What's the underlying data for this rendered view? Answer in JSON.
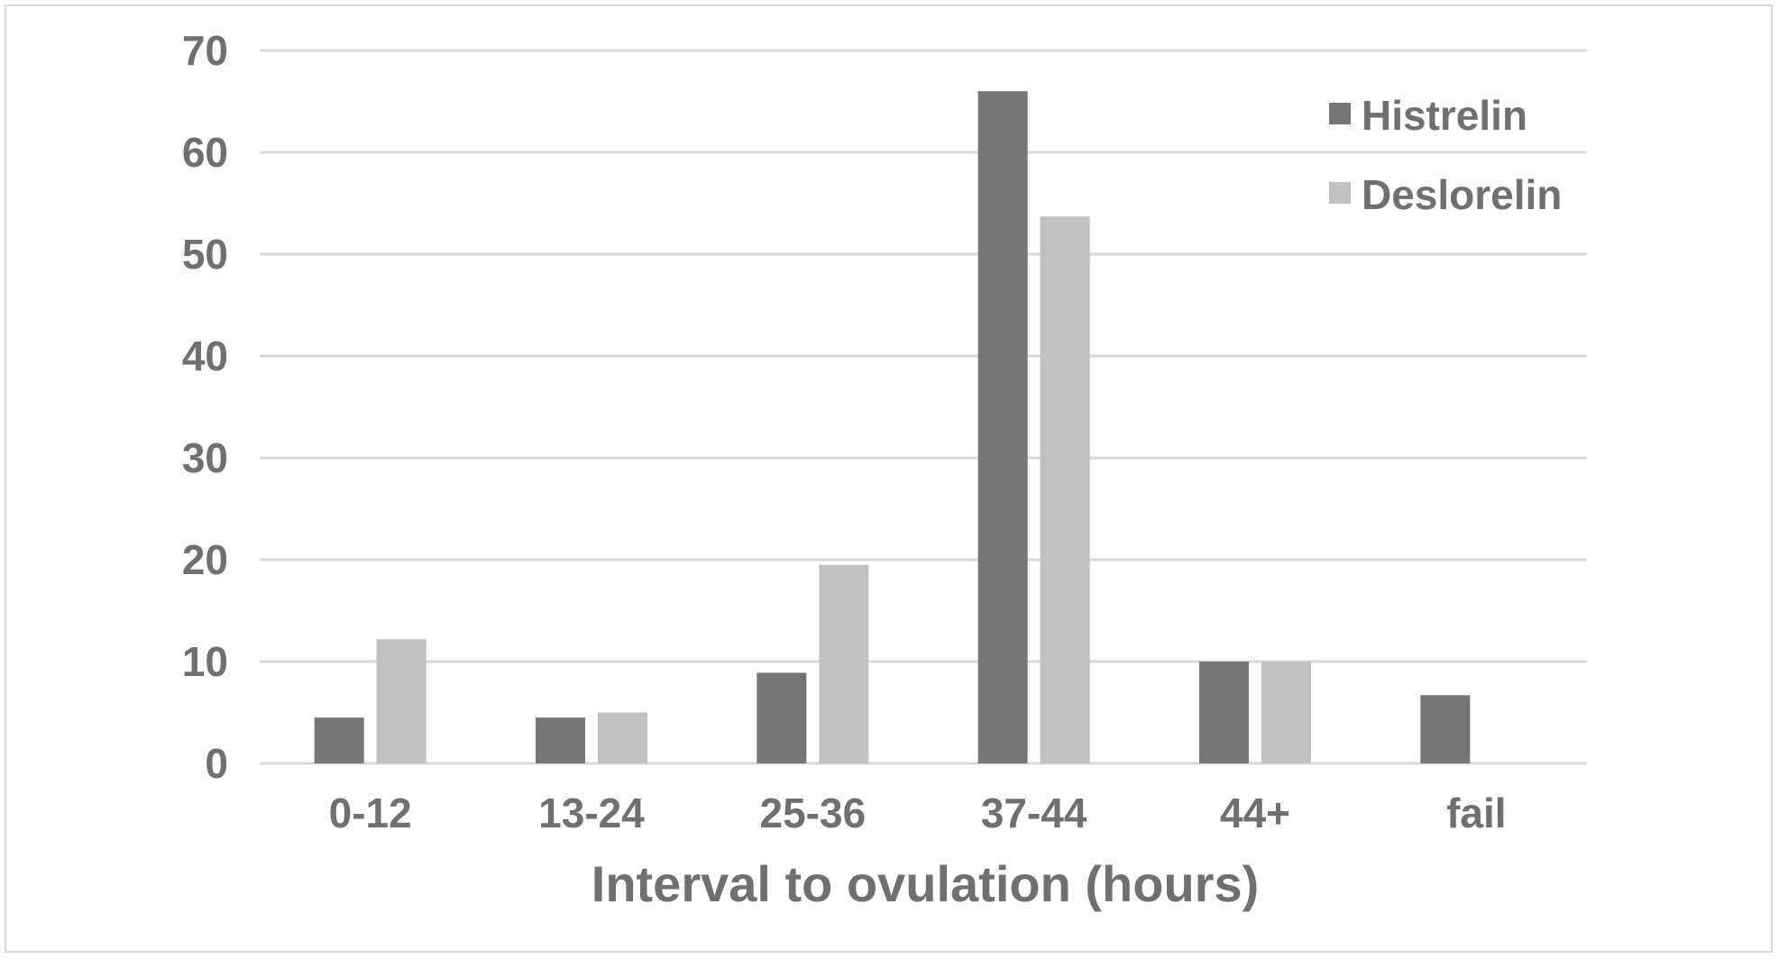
{
  "chart_data": {
    "type": "bar",
    "title": "",
    "xlabel": "Interval to ovulation (hours)",
    "ylabel": "",
    "categories": [
      "0-12",
      "13-24",
      "25-36",
      "37-44",
      "44+",
      "fail"
    ],
    "series": [
      {
        "name": "Histrelin",
        "color": "#767676",
        "values": [
          4.5,
          4.5,
          8.9,
          66,
          10,
          6.7
        ]
      },
      {
        "name": "Deslorelin",
        "color": "#c2c2c2",
        "values": [
          12.2,
          5,
          19.5,
          53.7,
          10,
          0
        ]
      }
    ],
    "ylim": [
      0,
      70
    ],
    "yticks": [
      0,
      10,
      20,
      30,
      40,
      50,
      60,
      70
    ],
    "grid": true,
    "legend_position": "top-right"
  }
}
